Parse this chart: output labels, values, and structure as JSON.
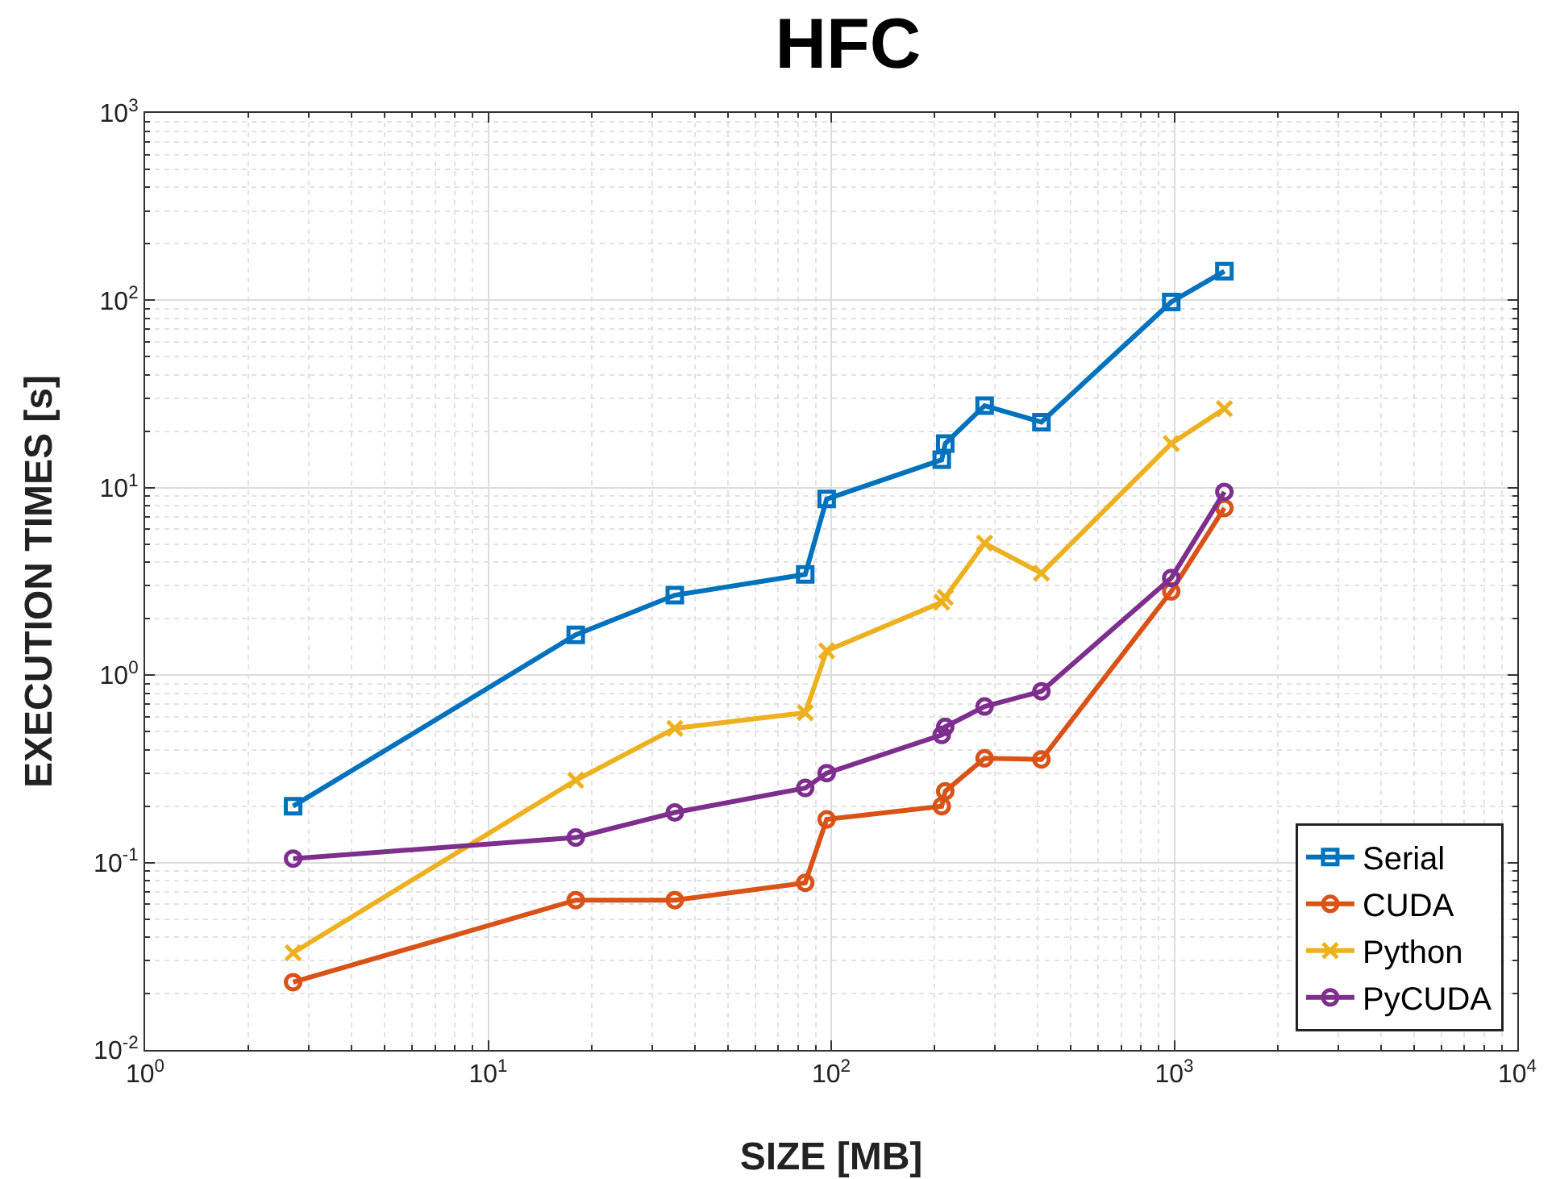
{
  "chart_data": {
    "type": "line",
    "title": "HFC",
    "xlabel": "SIZE [MB]",
    "ylabel": "EXECUTION TIMES [s]",
    "x": [
      2.7,
      18,
      35,
      84,
      97,
      210,
      215,
      280,
      410,
      980,
      1400
    ],
    "series": [
      {
        "name": "Serial",
        "color": "#0072bd",
        "marker": "square",
        "values": [
          0.2,
          1.64,
          2.67,
          3.45,
          8.7,
          14.1,
          17.2,
          27.4,
          22.4,
          98,
          143
        ]
      },
      {
        "name": "CUDA",
        "color": "#d95319",
        "marker": "circle",
        "values": [
          0.023,
          0.063,
          0.063,
          0.078,
          0.17,
          0.2,
          0.24,
          0.36,
          0.355,
          2.8,
          7.8
        ]
      },
      {
        "name": "Python",
        "color": "#edb120",
        "marker": "cross",
        "values": [
          0.033,
          0.275,
          0.52,
          0.63,
          1.35,
          2.45,
          2.6,
          5.06,
          3.5,
          17.2,
          26.4
        ]
      },
      {
        "name": "PyCUDA",
        "color": "#7e2f8e",
        "marker": "circle",
        "values": [
          0.105,
          0.136,
          0.185,
          0.25,
          0.3,
          0.48,
          0.53,
          0.68,
          0.82,
          3.3,
          9.5
        ]
      }
    ],
    "log": "xy",
    "xlim": [
      1,
      10000
    ],
    "ylim": [
      0.01,
      1000
    ],
    "xticks": [
      {
        "value": 1,
        "label": "10$^{0}$"
      },
      {
        "value": 10,
        "label": "10$^{1}$"
      },
      {
        "value": 100,
        "label": "10$^{2}$"
      },
      {
        "value": 1000,
        "label": "10$^{3}$"
      },
      {
        "value": 10000,
        "label": "10$^{4}$"
      }
    ],
    "yticks": [
      {
        "value": 0.01,
        "label": "10$^{-2}$"
      },
      {
        "value": 0.1,
        "label": "10$^{-1}$"
      },
      {
        "value": 1,
        "label": "10$^{0}$"
      },
      {
        "value": 10,
        "label": "10$^{1}$"
      },
      {
        "value": 100,
        "label": "10$^{2}$"
      },
      {
        "value": 1000,
        "label": "10$^{3}$"
      }
    ],
    "grid": true,
    "legend": "bottom right",
    "line_style": "solid"
  }
}
